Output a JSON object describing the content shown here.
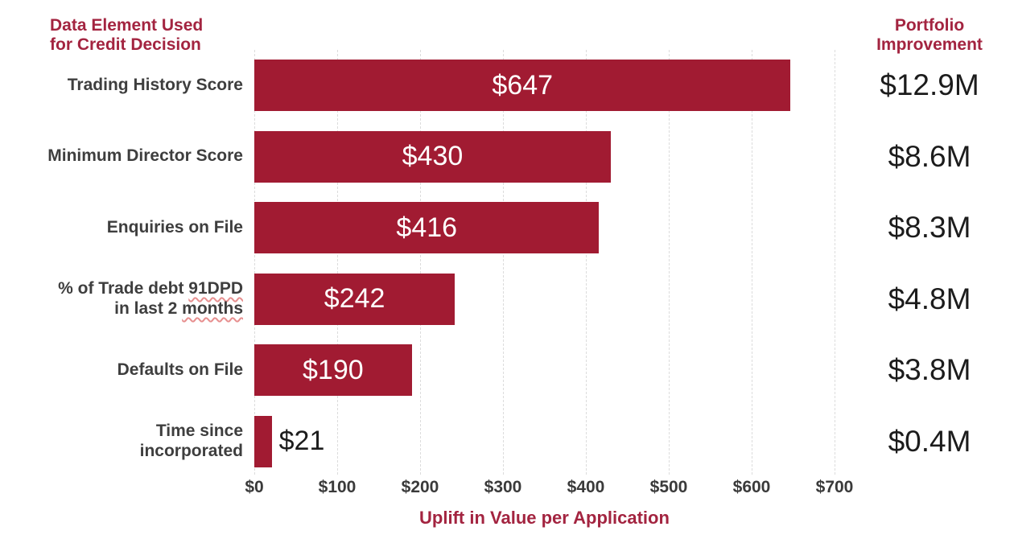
{
  "colors": {
    "bar": "#A11B32",
    "heading": "#A32440",
    "category_text": "#3E3E3E",
    "tick_text": "#3A3A3A",
    "value_text": "#FFFFFF",
    "improvement_text": "#1C1C1C",
    "gridline": "#DCDCDC",
    "squiggle": "#E78F8F",
    "background": "#FFFFFF"
  },
  "headers": {
    "left_line1": "Data Element Used",
    "left_line2": "for Credit Decision",
    "right_line1": "Portfolio",
    "right_line2": "Improvement"
  },
  "chart_data": {
    "type": "bar",
    "orientation": "horizontal",
    "title": "",
    "categories": [
      "Trading History Score",
      "Minimum Director Score",
      "Enquiries on File",
      "% of Trade debt 91DPD in last 2 months",
      "Defaults on File",
      "Time since incorporated"
    ],
    "series": [
      {
        "name": "Uplift in Value per Application ($)",
        "values": [
          647,
          430,
          416,
          242,
          190,
          21
        ]
      },
      {
        "name": "Portfolio Improvement ($M)",
        "values": [
          12.9,
          8.6,
          8.3,
          4.8,
          3.8,
          0.4
        ]
      }
    ],
    "value_labels": [
      "$647",
      "$430",
      "$416",
      "$242",
      "$190",
      "$21"
    ],
    "right_column_labels": [
      "$12.9M",
      "$8.6M",
      "$8.3M",
      "$4.8M",
      "$3.8M",
      "$0.4M"
    ],
    "xlabel": "Uplift in Value per Application",
    "x_ticks": [
      "$0",
      "$100",
      "$200",
      "$300",
      "$400",
      "$500",
      "$600",
      "$700"
    ],
    "x_tick_values": [
      0,
      100,
      200,
      300,
      400,
      500,
      600,
      700
    ],
    "xlim": [
      0,
      700
    ],
    "grid": "vertical dashed",
    "legend": "none",
    "left_column_title": "Data Element Used for Credit Decision",
    "right_column_title": "Portfolio Improvement"
  },
  "axis": {
    "label": "Uplift in Value per Application"
  },
  "rows": [
    {
      "label_line1": "Trading History Score",
      "value_label": "$647",
      "improvement": "$12.9M"
    },
    {
      "label_line1": "Minimum Director Score",
      "value_label": "$430",
      "improvement": "$8.6M"
    },
    {
      "label_line1": "Enquiries on File",
      "value_label": "$416",
      "improvement": "$8.3M"
    },
    {
      "label_line1_pre": "% of Trade debt ",
      "label_line1_mark": "91DPD",
      "label_line2_pre": "in last 2 ",
      "label_line2_mark": "months",
      "value_label": "$242",
      "improvement": "$4.8M"
    },
    {
      "label_line1": "Defaults on File",
      "value_label": "$190",
      "improvement": "$3.8M"
    },
    {
      "label_line1": "Time since",
      "label_line2": "incorporated",
      "value_label": "$21",
      "improvement": "$0.4M"
    }
  ]
}
